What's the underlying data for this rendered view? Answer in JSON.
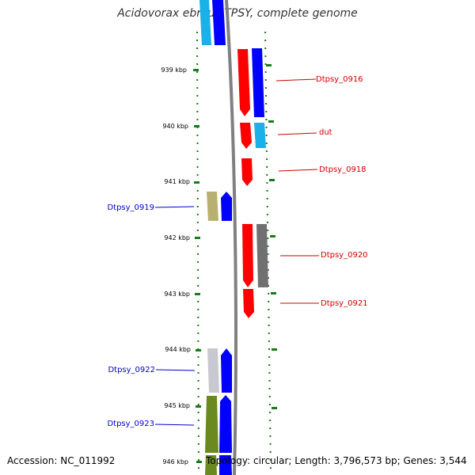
{
  "title": "Acidovorax ebreus TPSY, complete genome",
  "footer": {
    "accession": "Accession: NC_011992",
    "topology": "Topology: circular; Length: 3,796,573 bp; Genes: 3,544"
  },
  "ticks": [
    "939 kbp",
    "940 kbp",
    "941 kbp",
    "942 kbp",
    "943 kbp",
    "944 kbp",
    "945 kbp",
    "946 kbp"
  ],
  "genes": [
    {
      "name": "Dtpsy_0916",
      "side": "right",
      "color": "#cc0000"
    },
    {
      "name": "dut",
      "side": "right",
      "color": "#cc0000"
    },
    {
      "name": "Dtpsy_0918",
      "side": "right",
      "color": "#cc0000"
    },
    {
      "name": "Dtpsy_0919",
      "side": "left",
      "color": "#0000cc"
    },
    {
      "name": "Dtpsy_0920",
      "side": "right",
      "color": "#cc0000"
    },
    {
      "name": "Dtpsy_0921",
      "side": "right",
      "color": "#cc0000"
    },
    {
      "name": "Dtpsy_0922",
      "side": "left",
      "color": "#0000cc"
    },
    {
      "name": "Dtpsy_0923",
      "side": "left",
      "color": "#0000cc"
    }
  ],
  "colors": {
    "forward_cds": "#0000ff",
    "reverse_cds": "#ff0000",
    "cog_light_blue": "#1ab0e8",
    "cog_olive": "#b8b070",
    "cog_gray": "#707070",
    "cog_light_gray": "#c8c8d0",
    "cog_green": "#6a8a20",
    "backbone": "#888888",
    "tick_green": "#1a7a1a"
  }
}
